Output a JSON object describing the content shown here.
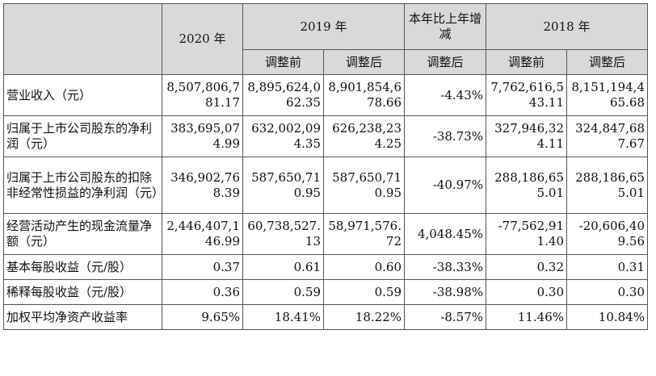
{
  "header": {
    "col_2020": "2020 年",
    "col_2019": "2019 年",
    "col_change": "本年比上年增减",
    "col_2018": "2018 年",
    "before_adj": "调整前",
    "after_adj": "调整后"
  },
  "rows": [
    {
      "label": "营业收入（元）",
      "v2020": "8,507,806,781.17",
      "v2019_before": "8,895,624,062.35",
      "v2019_after": "8,901,854,678.66",
      "change": "-4.43%",
      "v2018_before": "7,762,616,543.11",
      "v2018_after": "8,151,194,465.68"
    },
    {
      "label": "归属于上市公司股东的净利润（元）",
      "v2020": "383,695,074.99",
      "v2019_before": "632,002,094.35",
      "v2019_after": "626,238,234.25",
      "change": "-38.73%",
      "v2018_before": "327,946,324.11",
      "v2018_after": "324,847,687.67"
    },
    {
      "label": "归属于上市公司股东的扣除非经常性损益的净利润（元）",
      "v2020": "346,902,768.39",
      "v2019_before": "587,650,710.95",
      "v2019_after": "587,650,710.95",
      "change": "-40.97%",
      "v2018_before": "288,186,655.01",
      "v2018_after": "288,186,655.01"
    },
    {
      "label": "经营活动产生的现金流量净额（元）",
      "v2020": "2,446,407,146.99",
      "v2019_before": "60,738,527.13",
      "v2019_after": "58,971,576.72",
      "change": "4,048.45%",
      "v2018_before": "-77,562,911.40",
      "v2018_after": "-20,606,409.56"
    },
    {
      "label": "基本每股收益（元/股）",
      "v2020": "0.37",
      "v2019_before": "0.61",
      "v2019_after": "0.60",
      "change": "-38.33%",
      "v2018_before": "0.32",
      "v2018_after": "0.31"
    },
    {
      "label": "稀释每股收益（元/股）",
      "v2020": "0.36",
      "v2019_before": "0.59",
      "v2019_after": "0.59",
      "change": "-38.98%",
      "v2018_before": "0.30",
      "v2018_after": "0.30"
    },
    {
      "label": "加权平均净资产收益率",
      "v2020": "9.65%",
      "v2019_before": "18.41%",
      "v2019_after": "18.22%",
      "change": "-8.57%",
      "v2018_before": "11.46%",
      "v2018_after": "10.84%"
    }
  ]
}
